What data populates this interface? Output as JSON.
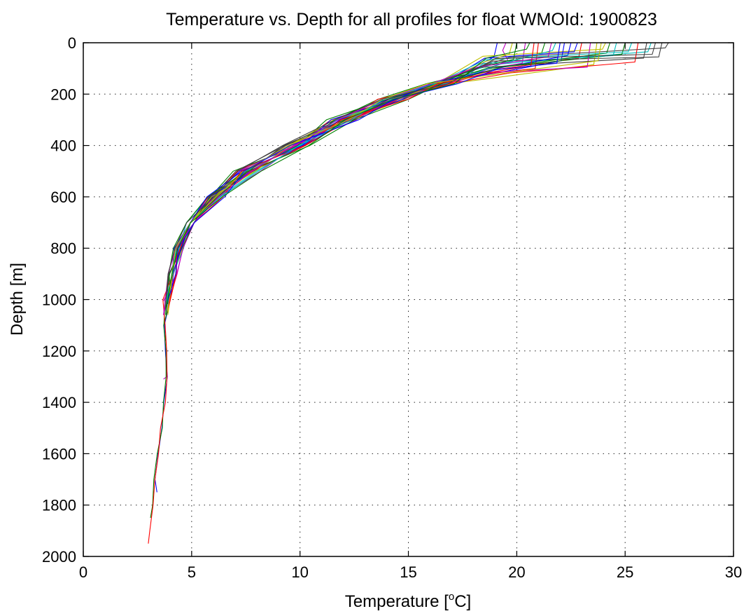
{
  "chart_data": {
    "type": "line",
    "title": "Temperature vs. Depth for all profiles for float WMOId: 1900823",
    "xlabel": "Temperature [",
    "xlabel_superscript": "o",
    "xlabel_suffix": "C]",
    "ylabel": "Depth [m]",
    "xlim": [
      0,
      30
    ],
    "ylim": [
      0,
      2000
    ],
    "y_reversed": true,
    "grid": true,
    "legend": "none",
    "x_ticks": [
      "0",
      "5",
      "10",
      "15",
      "20",
      "25",
      "30"
    ],
    "y_ticks": [
      "0",
      "200",
      "400",
      "600",
      "800",
      "1000",
      "1200",
      "1400",
      "1600",
      "1800",
      "2000"
    ],
    "series_colors": [
      "#0000ff",
      "#008000",
      "#ff0000",
      "#00bfbf",
      "#bf00bf",
      "#bfbf00",
      "#404040"
    ],
    "series": [
      {
        "surface_temperature": 19.1,
        "mixed_layer_depth": 55,
        "max_depth": 1000,
        "deep_temperature": 3.9,
        "color_index": 0
      },
      {
        "surface_temperature": 21.3,
        "mixed_layer_depth": 40,
        "max_depth": 1160,
        "deep_temperature": 3.8,
        "color_index": 1
      },
      {
        "surface_temperature": 23.0,
        "mixed_layer_depth": 60,
        "max_depth": 1000,
        "deep_temperature": 3.9,
        "color_index": 2
      },
      {
        "surface_temperature": 26.2,
        "mixed_layer_depth": 35,
        "max_depth": 1000,
        "deep_temperature": 3.8,
        "color_index": 3
      },
      {
        "surface_temperature": 20.4,
        "mixed_layer_depth": 80,
        "max_depth": 1310,
        "deep_temperature": 3.7,
        "color_index": 4
      },
      {
        "surface_temperature": 24.1,
        "mixed_layer_depth": 25,
        "max_depth": 1000,
        "deep_temperature": 3.9,
        "color_index": 5
      },
      {
        "surface_temperature": 27.0,
        "mixed_layer_depth": 20,
        "max_depth": 1000,
        "deep_temperature": 3.8,
        "color_index": 6
      },
      {
        "surface_temperature": 22.2,
        "mixed_layer_depth": 70,
        "max_depth": 1750,
        "deep_temperature": 3.4,
        "color_index": 0
      },
      {
        "surface_temperature": 25.0,
        "mixed_layer_depth": 45,
        "max_depth": 1850,
        "deep_temperature": 3.1,
        "color_index": 1
      },
      {
        "surface_temperature": 21.0,
        "mixed_layer_depth": 100,
        "max_depth": 1950,
        "deep_temperature": 3.0,
        "color_index": 2
      },
      {
        "surface_temperature": 24.6,
        "mixed_layer_depth": 50,
        "max_depth": 1000,
        "deep_temperature": 3.8,
        "color_index": 3
      },
      {
        "surface_temperature": 19.5,
        "mixed_layer_depth": 30,
        "max_depth": 1060,
        "deep_temperature": 3.7,
        "color_index": 4
      },
      {
        "surface_temperature": 23.7,
        "mixed_layer_depth": 85,
        "max_depth": 1000,
        "deep_temperature": 3.9,
        "color_index": 5
      },
      {
        "surface_temperature": 26.7,
        "mixed_layer_depth": 55,
        "max_depth": 1000,
        "deep_temperature": 3.8,
        "color_index": 6
      },
      {
        "surface_temperature": 22.8,
        "mixed_layer_depth": 35,
        "max_depth": 1000,
        "deep_temperature": 3.9,
        "color_index": 0
      },
      {
        "surface_temperature": 20.0,
        "mixed_layer_depth": 65,
        "max_depth": 1000,
        "deep_temperature": 3.8,
        "color_index": 1
      },
      {
        "surface_temperature": 25.6,
        "mixed_layer_depth": 75,
        "max_depth": 1000,
        "deep_temperature": 3.9,
        "color_index": 2
      },
      {
        "surface_temperature": 21.8,
        "mixed_layer_depth": 30,
        "max_depth": 1000,
        "deep_temperature": 3.8,
        "color_index": 3
      },
      {
        "surface_temperature": 23.4,
        "mixed_layer_depth": 95,
        "max_depth": 1000,
        "deep_temperature": 3.7,
        "color_index": 4
      },
      {
        "surface_temperature": 19.8,
        "mixed_layer_depth": 45,
        "max_depth": 1000,
        "deep_temperature": 3.9,
        "color_index": 5
      },
      {
        "surface_temperature": 26.0,
        "mixed_layer_depth": 60,
        "max_depth": 1000,
        "deep_temperature": 3.8,
        "color_index": 6
      },
      {
        "surface_temperature": 22.5,
        "mixed_layer_depth": 50,
        "max_depth": 1000,
        "deep_temperature": 3.9,
        "color_index": 0
      },
      {
        "surface_temperature": 24.3,
        "mixed_layer_depth": 40,
        "max_depth": 1000,
        "deep_temperature": 3.8,
        "color_index": 1
      },
      {
        "surface_temperature": 20.8,
        "mixed_layer_depth": 90,
        "max_depth": 1000,
        "deep_temperature": 3.9,
        "color_index": 2
      },
      {
        "surface_temperature": 25.3,
        "mixed_layer_depth": 35,
        "max_depth": 1000,
        "deep_temperature": 3.8,
        "color_index": 3
      },
      {
        "surface_temperature": 21.6,
        "mixed_layer_depth": 55,
        "max_depth": 1000,
        "deep_temperature": 3.7,
        "color_index": 4
      },
      {
        "surface_temperature": 23.9,
        "mixed_layer_depth": 70,
        "max_depth": 1000,
        "deep_temperature": 3.9,
        "color_index": 5
      },
      {
        "surface_temperature": 26.4,
        "mixed_layer_depth": 45,
        "max_depth": 1000,
        "deep_temperature": 3.8,
        "color_index": 6
      },
      {
        "surface_temperature": 22.0,
        "mixed_layer_depth": 80,
        "max_depth": 1000,
        "deep_temperature": 3.9,
        "color_index": 0
      },
      {
        "surface_temperature": 20.6,
        "mixed_layer_depth": 25,
        "max_depth": 1000,
        "deep_temperature": 3.8,
        "color_index": 1
      }
    ]
  }
}
